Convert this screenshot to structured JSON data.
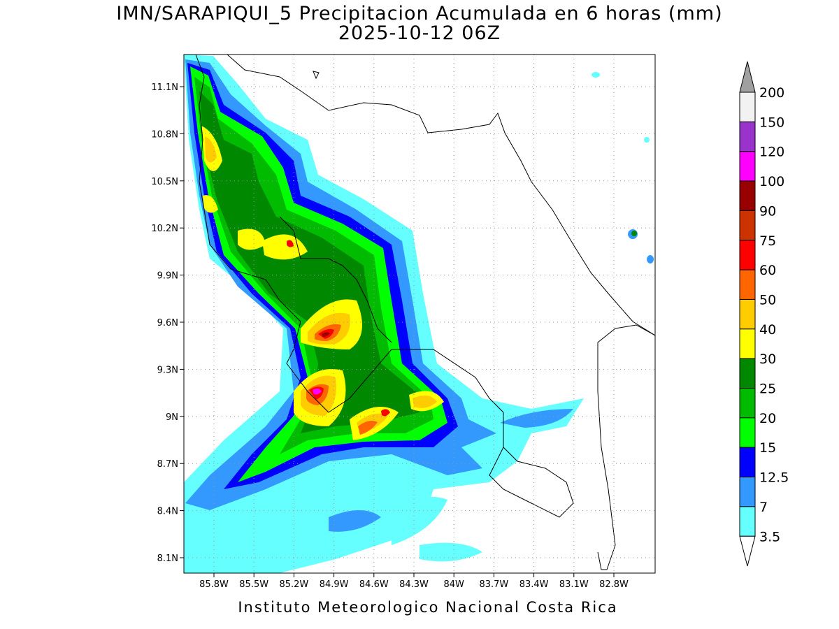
{
  "header": {
    "title": "IMN/SARAPIQUI_5 Precipitacion Acumulada en 6 horas (mm)",
    "subtitle": "2025-10-12 06Z"
  },
  "map": {
    "lat_labels": [
      "11.1N",
      "10.8N",
      "10.5N",
      "10.2N",
      "9.9N",
      "9.6N",
      "9.3N",
      "9N",
      "8.7N",
      "8.4N",
      "8.1N"
    ],
    "lon_labels": [
      "85.8W",
      "85.5W",
      "85.2W",
      "84.9W",
      "84.6W",
      "84.3W",
      "84W",
      "83.7W",
      "83.4W",
      "83.1W",
      "82.8W"
    ]
  },
  "colorbar": {
    "top_color": "#a0a0a0",
    "bottom_color": "#ffffff",
    "levels": [
      {
        "label": "200",
        "color": "#f2f2f2"
      },
      {
        "label": "150",
        "color": "#9933cc"
      },
      {
        "label": "120",
        "color": "#ff00ff"
      },
      {
        "label": "100",
        "color": "#990000"
      },
      {
        "label": "90",
        "color": "#cc3300"
      },
      {
        "label": "75",
        "color": "#ff0000"
      },
      {
        "label": "60",
        "color": "#ff6600"
      },
      {
        "label": "50",
        "color": "#ffcc00"
      },
      {
        "label": "40",
        "color": "#ffff00"
      },
      {
        "label": "30",
        "color": "#008800"
      },
      {
        "label": "25",
        "color": "#00bb00"
      },
      {
        "label": "20",
        "color": "#00ff00"
      },
      {
        "label": "15",
        "color": "#0000ff"
      },
      {
        "label": "12.5",
        "color": "#3399ff"
      },
      {
        "label": "7",
        "color": "#66ffff"
      },
      {
        "label": "3.5",
        "color": null
      }
    ]
  },
  "footer": "Instituto Meteorologico Nacional Costa Rica"
}
